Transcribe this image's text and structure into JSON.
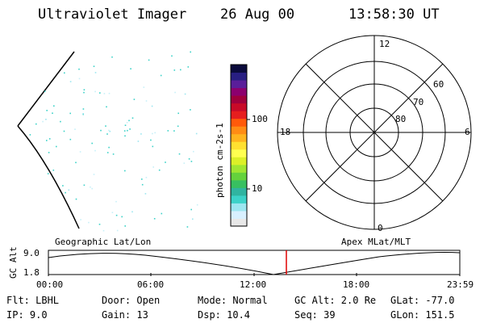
{
  "header": {
    "instrument": "Ultraviolet Imager",
    "date": "26 Aug 00",
    "time": "13:58:30 UT"
  },
  "colorbar": {
    "unit_label": "photon cm-2s-1",
    "ticks": [
      "100",
      "10"
    ],
    "colors": [
      "#e8e8e8",
      "#d8f0ff",
      "#9ce6f0",
      "#3cd2c8",
      "#30b4a0",
      "#38c060",
      "#64d23c",
      "#a0e632",
      "#dcf028",
      "#ffff50",
      "#ffe030",
      "#ffb41e",
      "#ff8c14",
      "#ff5a0a",
      "#e61e1e",
      "#c80a28",
      "#a0003c",
      "#8c006e",
      "#5a1e9a",
      "#281e82",
      "#0a0a3c"
    ]
  },
  "polar_plot": {
    "mlt_labels": [
      "12",
      "18",
      "6",
      "0"
    ],
    "lat_labels": [
      "60",
      "70",
      "80"
    ]
  },
  "timeline": {
    "left_label": "Geographic Lat/Lon",
    "right_label": "Apex MLat/MLT",
    "y_axis_label": "GC Alt",
    "y_ticks": [
      "9.0",
      "1.8"
    ],
    "x_ticks": [
      "00:00",
      "06:00",
      "12:00",
      "18:00",
      "23:59"
    ],
    "current_marker_color": "#e00000"
  },
  "info": {
    "flt": "Flt: LBHL",
    "ip": "IP:  9.0",
    "door": "Door: Open",
    "gain": "Gain: 13",
    "mode": "Mode: Normal",
    "dsp": "Dsp:   10.4",
    "gcalt": "GC Alt: 2.0 Re",
    "seq": "Seq: 39",
    "glat": "GLat: -77.0",
    "glon": "GLon: 151.5"
  }
}
